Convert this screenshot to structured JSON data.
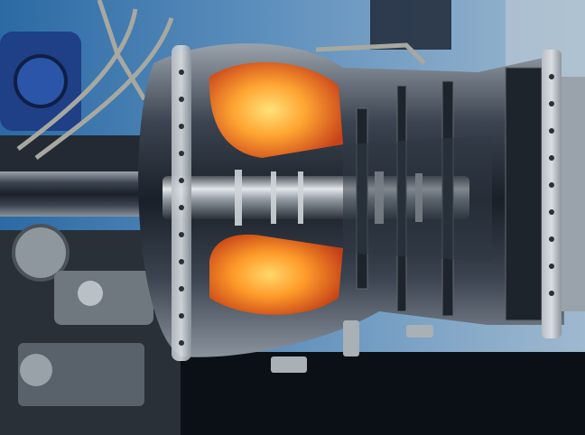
{
  "scene": {
    "subject": "turbine-engine-cutaway",
    "palette": {
      "background_blue": "#2f6fa8",
      "metal_light": "#c9ced3",
      "metal_mid": "#7d858e",
      "metal_dark": "#1c2129",
      "glow_core": "#ffcf5a",
      "glow_outer": "#e0581a",
      "casing_shadow": "#0b0f16"
    }
  }
}
